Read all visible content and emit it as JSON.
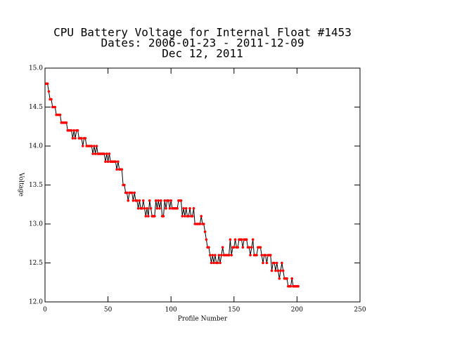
{
  "chart_data": {
    "type": "line",
    "title": "CPU Battery Voltage for Internal Float #1453",
    "subtitle": "Dates:  2006-01-23 -  2011-12-09",
    "date": "Dec 12, 2011",
    "xlabel": "Profile Number",
    "ylabel": "Voltage",
    "xlim": [
      0,
      250
    ],
    "xticks": [
      0,
      50,
      100,
      150,
      200,
      250
    ],
    "ylim": [
      12,
      15
    ],
    "yticks": [
      {
        "value": 12,
        "label": "12.0"
      },
      12.5,
      {
        "value": 13,
        "label": "13.0"
      },
      13.5,
      {
        "value": 14,
        "label": "14.0"
      },
      14.5,
      {
        "value": 15,
        "label": "15.0"
      }
    ],
    "line_color": "#000000",
    "marker_color": "#ff0000",
    "x": [
      1,
      2,
      3,
      4,
      5,
      6,
      7,
      8,
      9,
      10,
      11,
      12,
      13,
      14,
      15,
      16,
      17,
      18,
      19,
      20,
      21,
      22,
      23,
      24,
      25,
      26,
      27,
      28,
      29,
      30,
      31,
      32,
      33,
      34,
      35,
      36,
      37,
      38,
      39,
      40,
      41,
      42,
      43,
      44,
      45,
      46,
      47,
      48,
      49,
      50,
      51,
      52,
      53,
      54,
      55,
      56,
      57,
      58,
      59,
      60,
      61,
      62,
      63,
      64,
      65,
      66,
      67,
      68,
      69,
      70,
      71,
      72,
      73,
      74,
      75,
      76,
      77,
      78,
      79,
      80,
      81,
      82,
      83,
      84,
      85,
      86,
      87,
      88,
      89,
      90,
      91,
      92,
      93,
      94,
      95,
      96,
      97,
      98,
      99,
      100,
      101,
      102,
      103,
      104,
      105,
      106,
      107,
      108,
      109,
      110,
      111,
      112,
      113,
      114,
      115,
      116,
      117,
      118,
      119,
      120,
      121,
      122,
      123,
      124,
      125,
      126,
      127,
      128,
      129,
      130,
      131,
      132,
      133,
      134,
      135,
      136,
      137,
      138,
      139,
      140,
      141,
      142,
      143,
      144,
      145,
      146,
      147,
      148,
      149,
      150,
      151,
      152,
      153,
      154,
      155,
      156,
      157,
      158,
      159,
      160,
      161,
      162,
      163,
      164,
      165,
      166,
      167,
      168,
      169,
      170,
      171,
      172,
      173,
      174,
      175,
      176,
      177,
      178,
      179,
      180,
      181,
      182,
      183,
      184,
      185,
      186,
      187,
      188,
      189,
      190,
      191,
      192,
      193,
      194,
      195,
      196,
      197,
      198,
      199,
      200,
      201
    ],
    "values": [
      14.8,
      14.8,
      14.7,
      14.6,
      14.6,
      14.5,
      14.5,
      14.5,
      14.4,
      14.4,
      14.4,
      14.4,
      14.3,
      14.3,
      14.3,
      14.3,
      14.3,
      14.2,
      14.2,
      14.2,
      14.2,
      14.1,
      14.2,
      14.1,
      14.2,
      14.2,
      14.1,
      14.1,
      14.1,
      14.0,
      14.1,
      14.1,
      14.0,
      14.0,
      14.0,
      14.0,
      14.0,
      13.9,
      14.0,
      13.9,
      14.0,
      13.9,
      13.9,
      13.9,
      13.9,
      13.9,
      13.9,
      13.8,
      13.9,
      13.8,
      13.9,
      13.8,
      13.8,
      13.8,
      13.8,
      13.8,
      13.7,
      13.8,
      13.7,
      13.7,
      13.7,
      13.5,
      13.5,
      13.4,
      13.4,
      13.3,
      13.4,
      13.4,
      13.4,
      13.3,
      13.4,
      13.3,
      13.3,
      13.2,
      13.3,
      13.2,
      13.2,
      13.3,
      13.2,
      13.1,
      13.2,
      13.1,
      13.3,
      13.2,
      13.1,
      13.1,
      13.1,
      13.3,
      13.2,
      13.3,
      13.2,
      13.3,
      13.1,
      13.1,
      13.3,
      13.2,
      13.3,
      13.3,
      13.2,
      13.3,
      13.2,
      13.2,
      13.2,
      13.2,
      13.2,
      13.3,
      13.3,
      13.3,
      13.1,
      13.2,
      13.1,
      13.2,
      13.1,
      13.1,
      13.2,
      13.1,
      13.1,
      13.2,
      13.0,
      13.0,
      13.0,
      13.0,
      13.0,
      13.1,
      13.0,
      13.0,
      12.9,
      12.8,
      12.7,
      12.7,
      12.6,
      12.5,
      12.6,
      12.5,
      12.6,
      12.5,
      12.5,
      12.6,
      12.5,
      12.6,
      12.7,
      12.6,
      12.6,
      12.6,
      12.6,
      12.6,
      12.8,
      12.6,
      12.7,
      12.7,
      12.8,
      12.7,
      12.7,
      12.8,
      12.8,
      12.8,
      12.7,
      12.8,
      12.8,
      12.8,
      12.7,
      12.7,
      12.6,
      12.7,
      12.8,
      12.6,
      12.6,
      12.6,
      12.7,
      12.7,
      12.7,
      12.6,
      12.5,
      12.6,
      12.6,
      12.5,
      12.6,
      12.6,
      12.6,
      12.4,
      12.5,
      12.5,
      12.4,
      12.5,
      12.4,
      12.3,
      12.4,
      12.5,
      12.4,
      12.3,
      12.3,
      12.3,
      12.2,
      12.2,
      12.2,
      12.3,
      12.2,
      12.2,
      12.2,
      12.2,
      12.2
    ]
  }
}
